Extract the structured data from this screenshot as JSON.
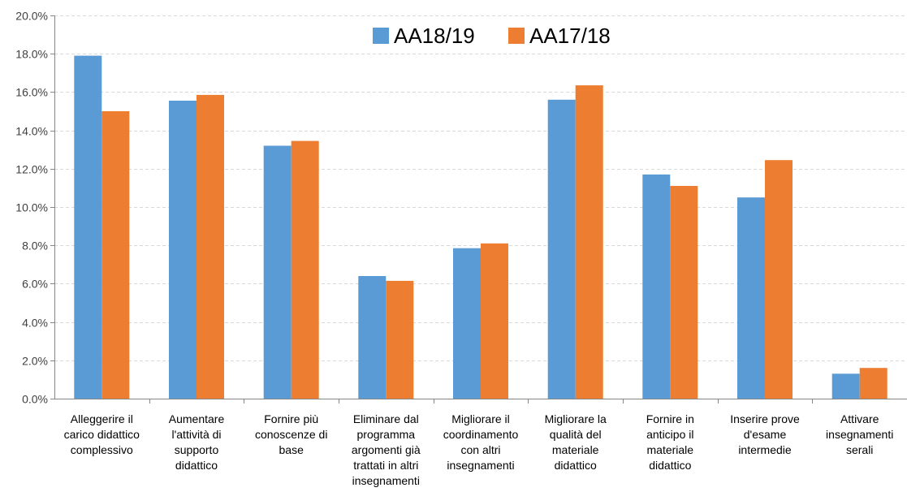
{
  "chart_data": {
    "type": "bar",
    "title": "",
    "xlabel": "",
    "ylabel": "",
    "ylim": [
      0,
      0.2
    ],
    "y_ticks": [
      "0.0%",
      "2.0%",
      "4.0%",
      "6.0%",
      "8.0%",
      "10.0%",
      "12.0%",
      "14.0%",
      "16.0%",
      "18.0%",
      "20.0%"
    ],
    "grid": true,
    "legend_position": "top-center",
    "categories": [
      [
        "Alleggerire il",
        "carico didattico",
        "complessivo"
      ],
      [
        "Aumentare",
        "l'attività di",
        "supporto",
        "didattico"
      ],
      [
        "Fornire più",
        "conoscenze di",
        "base"
      ],
      [
        "Eliminare dal",
        "programma",
        "argomenti già",
        "trattati in altri",
        "insegnamenti"
      ],
      [
        "Migliorare il",
        "coordinamento",
        "con altri",
        "insegnamenti"
      ],
      [
        "Migliorare la",
        "qualità del",
        "materiale",
        "didattico"
      ],
      [
        "Fornire in",
        "anticipo il",
        "materiale",
        "didattico"
      ],
      [
        "Inserire prove",
        "d'esame",
        "intermedie"
      ],
      [
        "Attivare",
        "insegnamenti",
        "serali"
      ]
    ],
    "series": [
      {
        "name": "AA18/19",
        "color": "#5B9BD5",
        "values": [
          0.179,
          0.1555,
          0.132,
          0.064,
          0.0785,
          0.156,
          0.117,
          0.105,
          0.013
        ]
      },
      {
        "name": "AA17/18",
        "color": "#ED7D31",
        "values": [
          0.15,
          0.1585,
          0.1345,
          0.0615,
          0.081,
          0.1635,
          0.111,
          0.1245,
          0.016
        ]
      }
    ],
    "grid_color": "#D9D9D9",
    "axis_color": "#868686"
  }
}
